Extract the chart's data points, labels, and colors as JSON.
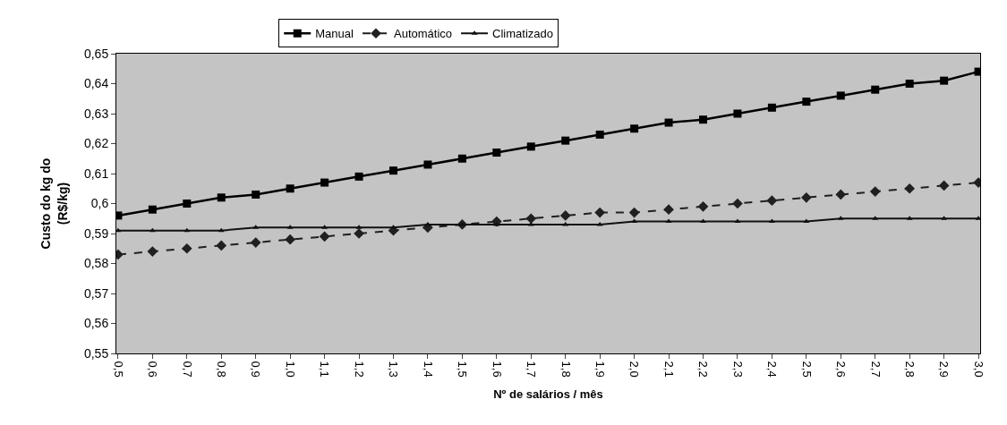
{
  "chart_data": {
    "type": "line",
    "xlabel": "Nº de salários / mês",
    "ylabel": "Custo do kg do\n(R$/kg)",
    "categories": [
      "0,5",
      "0,6",
      "0,7",
      "0,8",
      "0,9",
      "1,0",
      "1,1",
      "1,2",
      "1,3",
      "1,4",
      "1,5",
      "1,6",
      "1,7",
      "1,8",
      "1,9",
      "2,0",
      "2,1",
      "2,2",
      "2,3",
      "2,4",
      "2,5",
      "2,6",
      "2,7",
      "2,8",
      "2,9",
      "3,0"
    ],
    "series": [
      {
        "name": "Manual",
        "color": "#000000",
        "marker": "square",
        "line_style": "solid",
        "values": [
          0.596,
          0.598,
          0.6,
          0.602,
          0.603,
          0.605,
          0.607,
          0.609,
          0.611,
          0.613,
          0.615,
          0.617,
          0.619,
          0.621,
          0.623,
          0.625,
          0.627,
          0.628,
          0.63,
          0.632,
          0.634,
          0.636,
          0.638,
          0.64,
          0.641,
          0.644
        ]
      },
      {
        "name": "Automático",
        "color": "#202020",
        "marker": "diamond",
        "line_style": "dashed",
        "values": [
          0.583,
          0.584,
          0.585,
          0.586,
          0.587,
          0.588,
          0.589,
          0.59,
          0.591,
          0.592,
          0.593,
          0.594,
          0.595,
          0.596,
          0.597,
          0.597,
          0.598,
          0.599,
          0.6,
          0.601,
          0.602,
          0.603,
          0.604,
          0.605,
          0.606,
          0.607
        ]
      },
      {
        "name": "Climatizado",
        "color": "#111111",
        "marker": "triangle",
        "line_style": "solid",
        "values": [
          0.591,
          0.591,
          0.591,
          0.591,
          0.592,
          0.592,
          0.592,
          0.592,
          0.592,
          0.593,
          0.593,
          0.593,
          0.593,
          0.593,
          0.593,
          0.594,
          0.594,
          0.594,
          0.594,
          0.594,
          0.594,
          0.595,
          0.595,
          0.595,
          0.595,
          0.595
        ]
      }
    ],
    "ylim": [
      0.55,
      0.65
    ],
    "yticks": [
      {
        "value": 0.55,
        "label": "0,55"
      },
      {
        "value": 0.56,
        "label": "0,56"
      },
      {
        "value": 0.57,
        "label": "0,57"
      },
      {
        "value": 0.58,
        "label": "0,58"
      },
      {
        "value": 0.59,
        "label": "0,59"
      },
      {
        "value": 0.6,
        "label": "0,6"
      },
      {
        "value": 0.61,
        "label": "0,61"
      },
      {
        "value": 0.62,
        "label": "0,62"
      },
      {
        "value": 0.63,
        "label": "0,63"
      },
      {
        "value": 0.64,
        "label": "0,64"
      },
      {
        "value": 0.65,
        "label": "0,65"
      }
    ],
    "legend": "top",
    "grid": false
  }
}
